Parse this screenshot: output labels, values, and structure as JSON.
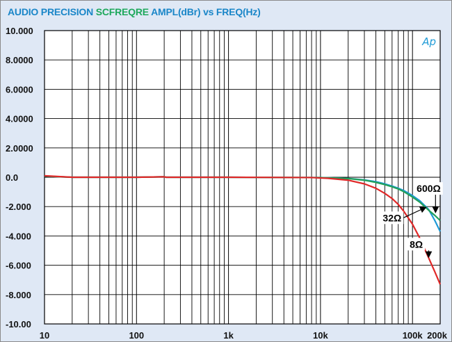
{
  "chart_data": {
    "type": "line",
    "title": {
      "parts": [
        {
          "text": "AUDIO PRECISION",
          "color": "#1a86c8"
        },
        {
          "text": " SCFREQRE",
          "color": "#1ea85c"
        },
        {
          "text": "  AMPL(dBr) vs FREQ(Hz)",
          "color": "#1a86c8"
        }
      ]
    },
    "logo": "Ap",
    "x_scale": "log",
    "xlim": [
      10,
      200000
    ],
    "ylim": [
      -10,
      10
    ],
    "grid": true,
    "x_ticks": [
      {
        "value": 10,
        "label": "10"
      },
      {
        "value": 100,
        "label": "100"
      },
      {
        "value": 1000,
        "label": "1k"
      },
      {
        "value": 10000,
        "label": "10k"
      },
      {
        "value": 100000,
        "label": "100k"
      },
      {
        "value": 200000,
        "label": "200k"
      }
    ],
    "y_ticks": [
      {
        "value": 10,
        "label": "10.000"
      },
      {
        "value": 8,
        "label": "8.0000"
      },
      {
        "value": 6,
        "label": "6.0000"
      },
      {
        "value": 4,
        "label": "4.0000"
      },
      {
        "value": 2,
        "label": "2.0000"
      },
      {
        "value": 0,
        "label": "0.0"
      },
      {
        "value": -2,
        "label": "-2.000"
      },
      {
        "value": -4,
        "label": "-4.000"
      },
      {
        "value": -6,
        "label": "-6.000"
      },
      {
        "value": -8,
        "label": "-8.000"
      },
      {
        "value": -10,
        "label": "-10.00"
      }
    ],
    "series": [
      {
        "name": "600Ω",
        "color": "#1e9ad6",
        "points": [
          [
            10,
            0.08
          ],
          [
            15,
            0.03
          ],
          [
            20,
            0.0
          ],
          [
            100,
            0.0
          ],
          [
            200,
            0.03
          ],
          [
            210,
            0.0
          ],
          [
            1000,
            0.0
          ],
          [
            10000,
            -0.02
          ],
          [
            20000,
            -0.08
          ],
          [
            30000,
            -0.18
          ],
          [
            40000,
            -0.3
          ],
          [
            50000,
            -0.45
          ],
          [
            60000,
            -0.6
          ],
          [
            70000,
            -0.75
          ],
          [
            80000,
            -0.9
          ],
          [
            100000,
            -1.25
          ],
          [
            120000,
            -1.6
          ],
          [
            150000,
            -2.2
          ],
          [
            175000,
            -2.95
          ],
          [
            200000,
            -3.7
          ]
        ]
      },
      {
        "name": "32Ω",
        "color": "#22a05a",
        "points": [
          [
            10,
            0.08
          ],
          [
            15,
            0.03
          ],
          [
            20,
            0.0
          ],
          [
            100,
            0.0
          ],
          [
            200,
            0.03
          ],
          [
            210,
            0.0
          ],
          [
            1000,
            0.0
          ],
          [
            10000,
            -0.02
          ],
          [
            20000,
            -0.09
          ],
          [
            30000,
            -0.2
          ],
          [
            40000,
            -0.35
          ],
          [
            50000,
            -0.5
          ],
          [
            60000,
            -0.65
          ],
          [
            70000,
            -0.8
          ],
          [
            80000,
            -0.97
          ],
          [
            100000,
            -1.35
          ],
          [
            120000,
            -1.7
          ],
          [
            150000,
            -2.25
          ],
          [
            175000,
            -2.6
          ],
          [
            200000,
            -2.95
          ]
        ]
      },
      {
        "name": "8Ω",
        "color": "#e02828",
        "points": [
          [
            10,
            0.1
          ],
          [
            15,
            0.04
          ],
          [
            20,
            0.0
          ],
          [
            100,
            0.0
          ],
          [
            200,
            0.03
          ],
          [
            210,
            0.0
          ],
          [
            1000,
            0.0
          ],
          [
            8000,
            -0.02
          ],
          [
            12000,
            -0.07
          ],
          [
            20000,
            -0.2
          ],
          [
            30000,
            -0.45
          ],
          [
            40000,
            -0.75
          ],
          [
            50000,
            -1.1
          ],
          [
            60000,
            -1.45
          ],
          [
            70000,
            -1.85
          ],
          [
            80000,
            -2.3
          ],
          [
            100000,
            -3.2
          ],
          [
            120000,
            -4.15
          ],
          [
            150000,
            -5.5
          ],
          [
            175000,
            -6.45
          ],
          [
            200000,
            -7.3
          ]
        ]
      }
    ],
    "annotations": [
      {
        "text": "600Ω",
        "at": [
          150000,
          -1.0
        ],
        "arrow_to": [
          178000,
          -2.4
        ]
      },
      {
        "text": "32Ω",
        "at": [
          60000,
          -3.0
        ],
        "arrow_to": [
          140000,
          -2.05
        ]
      },
      {
        "text": "8Ω",
        "at": [
          110000,
          -4.8
        ],
        "arrow_to": [
          150000,
          -5.45
        ]
      }
    ]
  }
}
